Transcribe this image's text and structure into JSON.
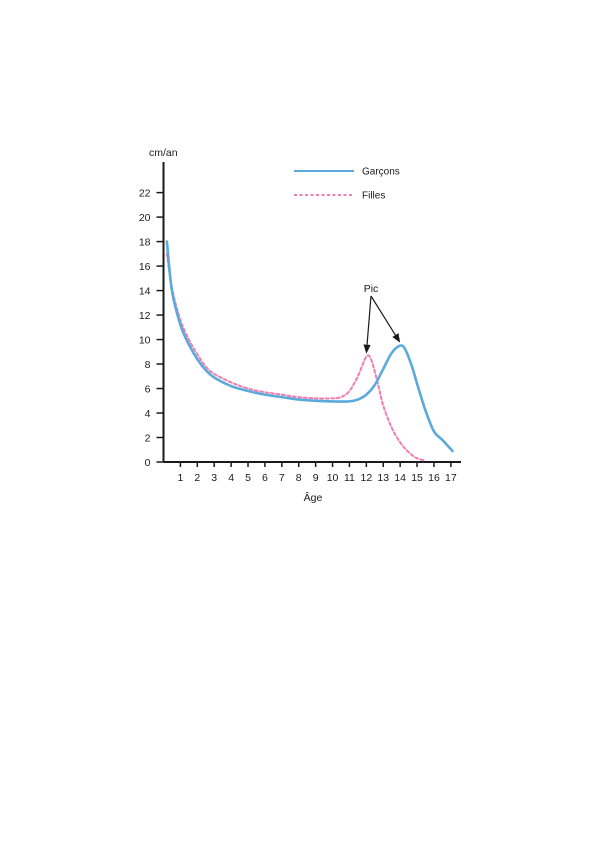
{
  "chart_data": {
    "type": "line",
    "ylabel": "cm/an",
    "xlabel": "Âge",
    "xlim": [
      0,
      17.6
    ],
    "ylim": [
      0,
      24.5
    ],
    "x_ticks": [
      1,
      2,
      3,
      4,
      5,
      6,
      7,
      8,
      9,
      10,
      11,
      12,
      13,
      14,
      15,
      16,
      17
    ],
    "x_tick_labels": [
      "1",
      "2",
      "3",
      "4",
      "5",
      "6",
      "7",
      "8",
      "9",
      "10",
      "11",
      "12",
      "13",
      "14",
      "15",
      "16",
      "17"
    ],
    "y_ticks": [
      0,
      2,
      4,
      6,
      8,
      10,
      12,
      14,
      16,
      18,
      20,
      22
    ],
    "y_tick_labels": [
      "0",
      "2",
      "4",
      "6",
      "8",
      "10",
      "12",
      "14",
      "16",
      "18",
      "20",
      "22"
    ],
    "grid": false,
    "legend_position": "top-right",
    "series": [
      {
        "name": "Garçons",
        "color": "#5aaadc",
        "style": "solid",
        "points": [
          [
            0.2,
            18
          ],
          [
            0.5,
            14
          ],
          [
            1,
            11.2
          ],
          [
            1.5,
            9.6
          ],
          [
            2,
            8.4
          ],
          [
            2.5,
            7.5
          ],
          [
            3,
            6.9
          ],
          [
            4,
            6.2
          ],
          [
            5,
            5.8
          ],
          [
            6,
            5.5
          ],
          [
            7,
            5.3
          ],
          [
            8,
            5.1
          ],
          [
            9,
            5.0
          ],
          [
            10,
            4.95
          ],
          [
            11,
            4.95
          ],
          [
            11.5,
            5.1
          ],
          [
            12,
            5.5
          ],
          [
            12.5,
            6.3
          ],
          [
            13,
            7.6
          ],
          [
            13.5,
            8.9
          ],
          [
            14,
            9.5
          ],
          [
            14.3,
            9.2
          ],
          [
            14.7,
            7.8
          ],
          [
            15,
            6.4
          ],
          [
            15.5,
            4.2
          ],
          [
            16,
            2.5
          ],
          [
            16.5,
            1.8
          ],
          [
            17.1,
            0.9
          ]
        ]
      },
      {
        "name": "Filles",
        "color": "#f07fb0",
        "style": "dashed",
        "points": [
          [
            0.2,
            17
          ],
          [
            0.5,
            14.2
          ],
          [
            1,
            11.6
          ],
          [
            1.5,
            10
          ],
          [
            2,
            8.8
          ],
          [
            2.5,
            7.8
          ],
          [
            3,
            7.2
          ],
          [
            4,
            6.5
          ],
          [
            5,
            6.0
          ],
          [
            6,
            5.7
          ],
          [
            7,
            5.5
          ],
          [
            8,
            5.3
          ],
          [
            9,
            5.2
          ],
          [
            10,
            5.2
          ],
          [
            10.5,
            5.3
          ],
          [
            11,
            5.8
          ],
          [
            11.5,
            7.0
          ],
          [
            12,
            8.6
          ],
          [
            12.3,
            8.3
          ],
          [
            12.7,
            6.3
          ],
          [
            13,
            4.6
          ],
          [
            13.5,
            2.8
          ],
          [
            14,
            1.6
          ],
          [
            14.5,
            0.8
          ],
          [
            15,
            0.3
          ],
          [
            15.5,
            0.1
          ]
        ]
      }
    ],
    "annotations": [
      {
        "text": "Pic",
        "targets": [
          [
            12,
            8.6
          ],
          [
            14,
            9.5
          ]
        ]
      }
    ]
  }
}
